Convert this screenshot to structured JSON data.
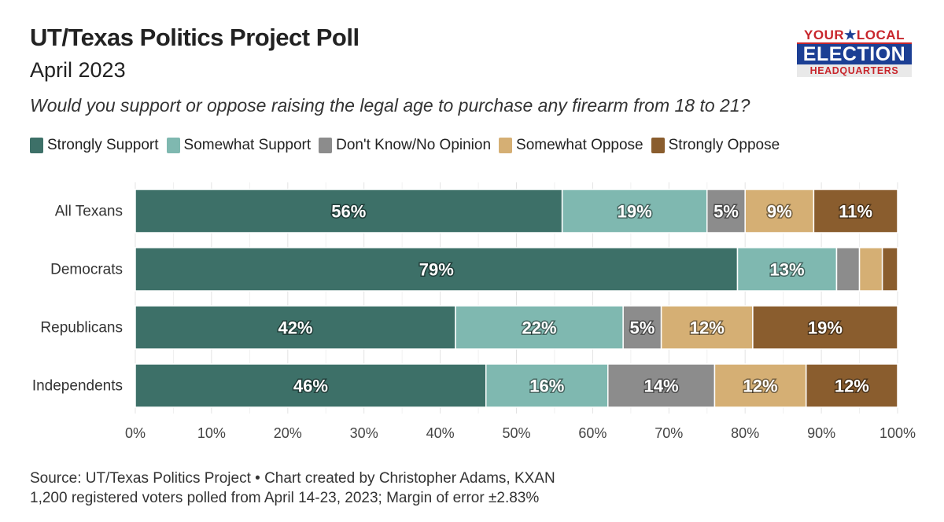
{
  "header": {
    "title": "UT/Texas Politics Project Poll",
    "subtitle": "April 2023",
    "question": "Would you support or oppose raising the legal age to purchase any firearm from 18 to 21?"
  },
  "logo": {
    "line1_left": "YOUR",
    "line1_star": "★",
    "line1_right": "LOCAL",
    "line2": "ELECTION",
    "line3": "HEADQUARTERS"
  },
  "chart_data": {
    "type": "bar",
    "orientation": "horizontal",
    "stacked": true,
    "categories": [
      "All Texans",
      "Democrats",
      "Republicans",
      "Independents"
    ],
    "series": [
      {
        "name": "Strongly Support",
        "color": "#3d7068",
        "values": [
          56,
          79,
          42,
          46
        ]
      },
      {
        "name": "Somewhat Support",
        "color": "#7fb8b0",
        "values": [
          19,
          13,
          22,
          16
        ]
      },
      {
        "name": "Don't Know/No Opinion",
        "color": "#8c8c8c",
        "values": [
          5,
          3,
          5,
          14
        ]
      },
      {
        "name": "Somewhat Oppose",
        "color": "#d5af74",
        "values": [
          9,
          3,
          12,
          12
        ]
      },
      {
        "name": "Strongly Oppose",
        "color": "#8a5d2e",
        "values": [
          11,
          2,
          19,
          12
        ]
      }
    ],
    "data_labels": [
      [
        "56%",
        "19%",
        "5%",
        "9%",
        "11%"
      ],
      [
        "79%",
        "13%",
        "",
        "",
        ""
      ],
      [
        "42%",
        "22%",
        "5%",
        "12%",
        "19%"
      ],
      [
        "46%",
        "16%",
        "14%",
        "12%",
        "12%"
      ]
    ],
    "x_ticks": [
      "0%",
      "10%",
      "20%",
      "30%",
      "40%",
      "50%",
      "60%",
      "70%",
      "80%",
      "90%",
      "100%"
    ],
    "xlim": [
      0,
      100
    ],
    "grid": true,
    "legend_position": "top-left",
    "xlabel": "",
    "ylabel": ""
  },
  "footer": {
    "source_line1": "Source: UT/Texas Politics Project • Chart created by Christopher Adams, KXAN",
    "source_line2": "1,200 registered voters polled from April 14-23, 2023; Margin of error ±2.83%"
  }
}
